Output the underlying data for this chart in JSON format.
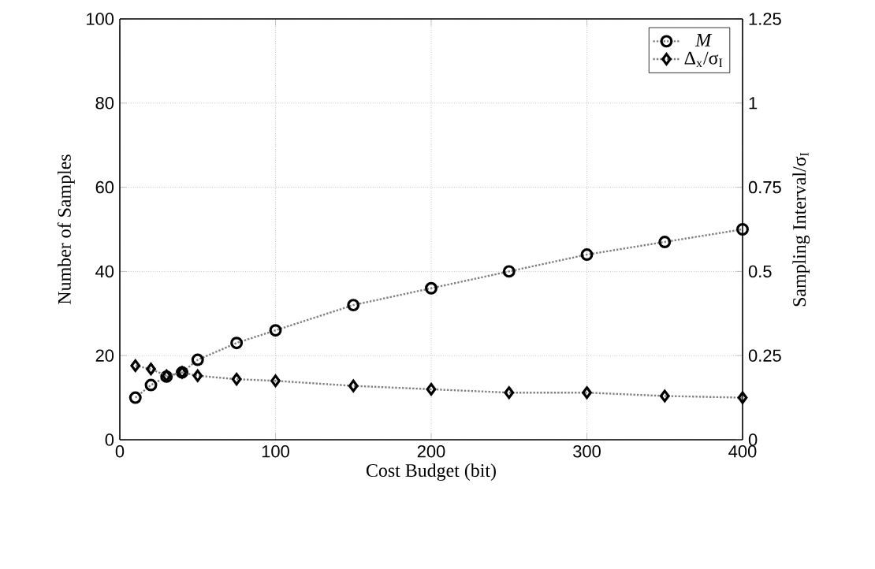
{
  "chart_data": {
    "type": "line",
    "xlabel": "Cost Budget (bit)",
    "ylabel": "Number of Samples",
    "y2label": "Sampling Interval/σ$_{I}$",
    "x": [
      10,
      20,
      30,
      40,
      50,
      75,
      100,
      150,
      200,
      250,
      300,
      350,
      400
    ],
    "series": [
      {
        "name": "*M*",
        "color": "#000000",
        "marker": "circle",
        "values": [
          10,
          13,
          15,
          16,
          19,
          23,
          26,
          32,
          36,
          40,
          44,
          47,
          50
        ]
      },
      {
        "name": "Δ$_{x}$/σ$_{I}$",
        "color": "#000000",
        "marker": "diamond",
        "axis": "y2",
        "values": [
          0.22,
          0.21,
          0.19,
          0.2,
          0.19,
          0.18,
          0.175,
          0.16,
          0.15,
          0.14,
          0.14,
          0.13,
          0.125
        ]
      }
    ],
    "xlim": [
      0,
      400
    ],
    "xticks": [
      0,
      100,
      200,
      300,
      400
    ],
    "ylim": [
      0,
      100
    ],
    "yticks": [
      0,
      20,
      40,
      60,
      80,
      100
    ],
    "y2lim": [
      0,
      1.25
    ],
    "y2ticks": [
      0,
      0.25,
      0.5,
      0.75,
      1,
      1.25
    ],
    "grid": true,
    "legend": "top right",
    "line_style": "dotted"
  }
}
